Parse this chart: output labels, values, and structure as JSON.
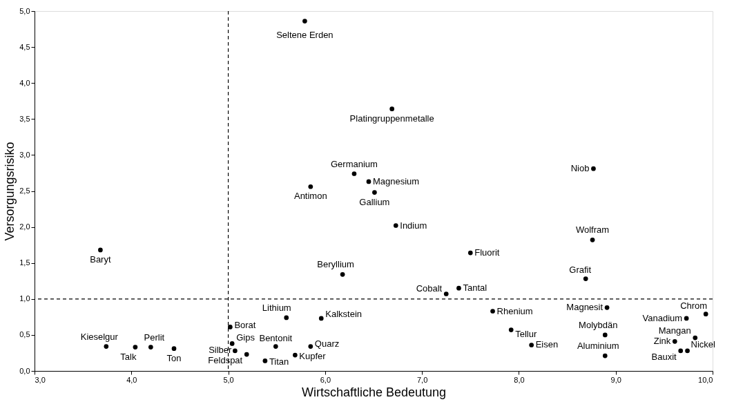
{
  "chart_data": {
    "type": "scatter",
    "xlabel": "Wirtschaftliche Bedeutung",
    "ylabel": "Versorgungsrisiko",
    "xlim": [
      3.0,
      10.0
    ],
    "ylim": [
      0.0,
      5.0
    ],
    "xticks": [
      {
        "value": 3,
        "label": "3,0"
      },
      {
        "value": 4,
        "label": "4,0"
      },
      {
        "value": 5,
        "label": "5,0"
      },
      {
        "value": 6,
        "label": "6,0"
      },
      {
        "value": 7,
        "label": "7,0"
      },
      {
        "value": 8,
        "label": "8,0"
      },
      {
        "value": 9,
        "label": "9,0"
      },
      {
        "value": 10,
        "label": "10,0"
      }
    ],
    "yticks": [
      {
        "value": 0,
        "label": "0,0"
      },
      {
        "value": 0.5,
        "label": "0,5"
      },
      {
        "value": 1,
        "label": "1,0"
      },
      {
        "value": 1.5,
        "label": "1,5"
      },
      {
        "value": 2,
        "label": "2,0"
      },
      {
        "value": 2.5,
        "label": "2,5"
      },
      {
        "value": 3,
        "label": "3,0"
      },
      {
        "value": 3.5,
        "label": "3,5"
      },
      {
        "value": 4,
        "label": "4,0"
      },
      {
        "value": 4.5,
        "label": "4,5"
      },
      {
        "value": 5,
        "label": "5,0"
      }
    ],
    "grid": false,
    "marker": "circle",
    "ref_lines": [
      {
        "axis": "x",
        "value": 5.0,
        "line_style": "dashed",
        "color": "#000000"
      },
      {
        "axis": "y",
        "value": 1.0,
        "line_style": "dashed",
        "color": "#000000"
      }
    ],
    "series": [
      {
        "color": "#000000",
        "x": [
          5.79,
          6.69,
          6.3,
          6.45,
          5.85,
          6.51,
          6.73,
          8.77,
          8.76,
          7.5,
          6.18,
          8.69,
          7.25,
          7.38,
          3.68,
          5.6,
          5.96,
          5.02,
          5.04,
          5.07,
          5.19,
          5.38,
          5.49,
          5.85,
          5.69,
          3.74,
          4.04,
          4.2,
          4.44,
          7.73,
          7.92,
          8.13,
          8.91,
          8.89,
          8.89,
          9.93,
          9.73,
          9.82,
          9.61,
          9.74,
          9.67
        ],
        "values": [
          4.86,
          3.64,
          2.74,
          2.63,
          2.56,
          2.48,
          2.02,
          2.81,
          1.82,
          1.64,
          1.34,
          1.28,
          1.07,
          1.15,
          1.68,
          0.74,
          0.73,
          0.61,
          0.38,
          0.28,
          0.23,
          0.14,
          0.34,
          0.34,
          0.22,
          0.34,
          0.33,
          0.33,
          0.31,
          0.83,
          0.57,
          0.36,
          0.88,
          0.5,
          0.21,
          0.79,
          0.73,
          0.46,
          0.41,
          0.28,
          0.28
        ]
      }
    ],
    "annotations": [
      {
        "text": "Seltene Erden",
        "x": 5.79,
        "y": 4.86
      },
      {
        "text": "Platingruppenmetalle",
        "x": 6.69,
        "y": 3.64
      },
      {
        "text": "Germanium",
        "x": 6.3,
        "y": 2.74
      },
      {
        "text": "Magnesium",
        "x": 6.45,
        "y": 2.63
      },
      {
        "text": "Antimon",
        "x": 5.85,
        "y": 2.56
      },
      {
        "text": "Gallium",
        "x": 6.51,
        "y": 2.48
      },
      {
        "text": "Indium",
        "x": 6.73,
        "y": 2.02
      },
      {
        "text": "Niob",
        "x": 8.77,
        "y": 2.81
      },
      {
        "text": "Wolfram",
        "x": 8.76,
        "y": 1.82
      },
      {
        "text": "Fluorit",
        "x": 7.5,
        "y": 1.64
      },
      {
        "text": "Beryllium",
        "x": 6.18,
        "y": 1.34
      },
      {
        "text": "Grafit",
        "x": 8.69,
        "y": 1.28
      },
      {
        "text": "Cobalt",
        "x": 7.25,
        "y": 1.07
      },
      {
        "text": "Tantal",
        "x": 7.38,
        "y": 1.15
      },
      {
        "text": "Baryt",
        "x": 3.68,
        "y": 1.68
      },
      {
        "text": "Lithium",
        "x": 5.6,
        "y": 0.74
      },
      {
        "text": "Kalkstein",
        "x": 5.96,
        "y": 0.73
      },
      {
        "text": "Borat",
        "x": 5.02,
        "y": 0.61
      },
      {
        "text": "Gips",
        "x": 5.04,
        "y": 0.38
      },
      {
        "text": "Silber",
        "x": 5.07,
        "y": 0.28
      },
      {
        "text": "Feldspat",
        "x": 5.19,
        "y": 0.23
      },
      {
        "text": "Titan",
        "x": 5.38,
        "y": 0.14
      },
      {
        "text": "Bentonit",
        "x": 5.49,
        "y": 0.34
      },
      {
        "text": "Quarz",
        "x": 5.85,
        "y": 0.34
      },
      {
        "text": "Kupfer",
        "x": 5.69,
        "y": 0.22
      },
      {
        "text": "Kieselgur",
        "x": 3.74,
        "y": 0.34
      },
      {
        "text": "Talk",
        "x": 4.04,
        "y": 0.33
      },
      {
        "text": "Perlit",
        "x": 4.2,
        "y": 0.33
      },
      {
        "text": "Ton",
        "x": 4.44,
        "y": 0.31
      },
      {
        "text": "Rhenium",
        "x": 7.73,
        "y": 0.83
      },
      {
        "text": "Tellur",
        "x": 7.92,
        "y": 0.57
      },
      {
        "text": "Eisen",
        "x": 8.13,
        "y": 0.36
      },
      {
        "text": "Magnesit",
        "x": 8.91,
        "y": 0.88
      },
      {
        "text": "Molybdän",
        "x": 8.89,
        "y": 0.5
      },
      {
        "text": "Aluminium",
        "x": 8.89,
        "y": 0.21
      },
      {
        "text": "Chrom",
        "x": 9.93,
        "y": 0.79
      },
      {
        "text": "Vanadium",
        "x": 9.73,
        "y": 0.73
      },
      {
        "text": "Mangan",
        "x": 9.82,
        "y": 0.46
      },
      {
        "text": "Zink",
        "x": 9.61,
        "y": 0.41
      },
      {
        "text": "Nickel",
        "x": 9.74,
        "y": 0.28
      },
      {
        "text": "Bauxit",
        "x": 9.67,
        "y": 0.28
      }
    ]
  }
}
